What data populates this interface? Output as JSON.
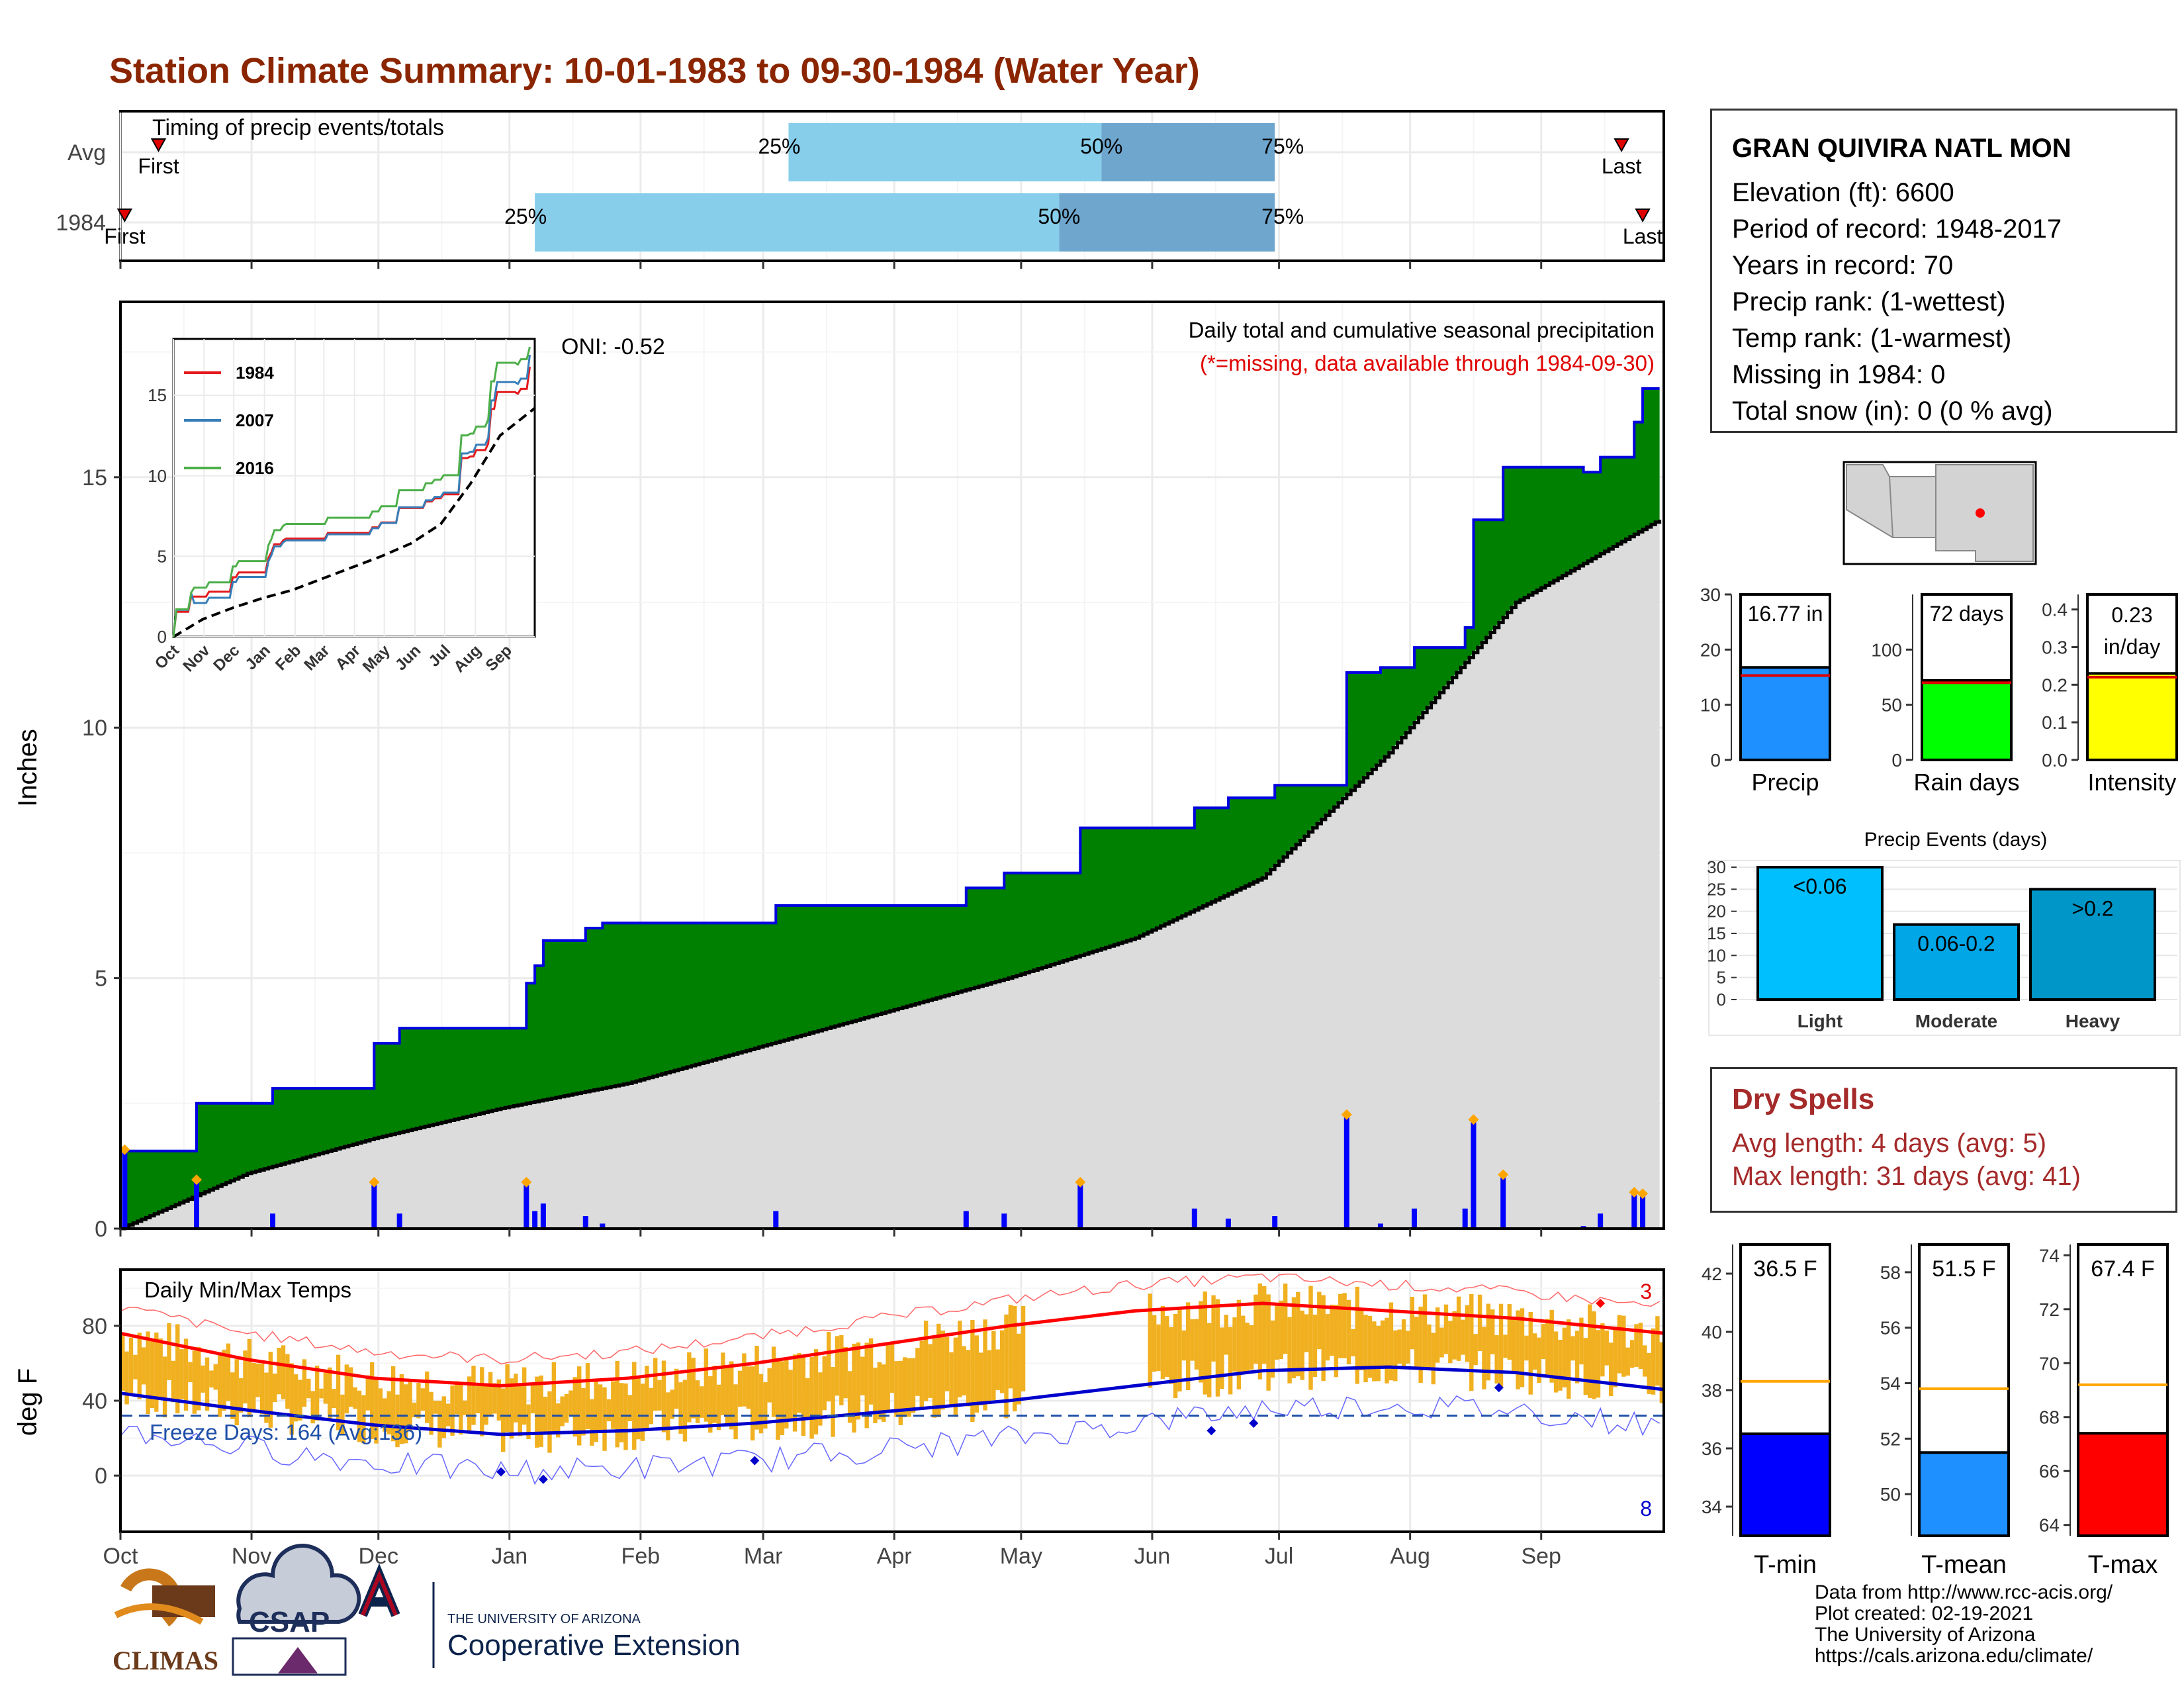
{
  "title": "Station Climate Summary: 10-01-1983 to 09-30-1984 (Water Year)",
  "months": [
    "Oct",
    "Nov",
    "Dec",
    "Jan",
    "Feb",
    "Mar",
    "Apr",
    "May",
    "Jun",
    "Jul",
    "Aug",
    "Sep"
  ],
  "timing": {
    "header": "Timing of precip events/totals",
    "rows": [
      {
        "label": "Avg",
        "first": "First",
        "last": "Last",
        "p25": "25%",
        "p50": "50%",
        "p75": "75%",
        "first_day": 9,
        "p25_day": 158,
        "p50_day": 232,
        "p75_day": 273,
        "last_day": 355
      },
      {
        "label": "1984",
        "first": "First",
        "last": "Last",
        "p25": "25%",
        "p50": "50%",
        "p75": "75%",
        "first_day": 1,
        "p25_day": 98,
        "p50_day": 222,
        "p75_day": 273,
        "last_day": 360
      }
    ]
  },
  "main": {
    "ylabel": "Inches",
    "subtitle": "Daily total and cumulative seasonal precipitation",
    "missing_note": "(*=missing, data available through 1984-09-30)",
    "oni": "ONI: -0.52",
    "yticks": [
      "0",
      "5",
      "10",
      "15"
    ]
  },
  "inset": {
    "legend": [
      "1984",
      "2007",
      "2016"
    ],
    "colors": [
      "#e41a1c",
      "#377eb8",
      "#4daf4a"
    ],
    "months": [
      "Oct",
      "Nov",
      "Dec",
      "Jan",
      "Feb",
      "Mar",
      "Apr",
      "May",
      "Jun",
      "Jul",
      "Aug",
      "Sep"
    ],
    "yticks": [
      "0",
      "5",
      "10",
      "15"
    ]
  },
  "temps": {
    "label": "Daily Min/Max Temps",
    "ylabel": "deg F",
    "yticks": [
      "0",
      "40",
      "80"
    ],
    "freeze": "Freeze Days: 164 (Avg:136)",
    "record_high_count": "3",
    "record_low_count": "8"
  },
  "station": {
    "name": "GRAN QUIVIRA NATL MON",
    "lines": [
      "Elevation (ft): 6600",
      "Period of record: 1948-2017",
      "Years in record: 70",
      "Precip rank:  (1-wettest)",
      "Temp rank:  (1-warmest)",
      "Missing in 1984: 0",
      "Total snow (in): 0 (0 % avg)"
    ]
  },
  "mini_bars": [
    {
      "label": "Precip",
      "value_text": "16.77 in",
      "value": 16.77,
      "avg": 15.3,
      "max": 30,
      "ticks": [
        "0",
        "10",
        "20",
        "30"
      ],
      "color": "#1e90ff"
    },
    {
      "label": "Rain days",
      "value_text": "72 days",
      "value": 72,
      "avg": 70,
      "max": 150,
      "ticks": [
        "0",
        "50",
        "100"
      ],
      "color": "#00ff00"
    },
    {
      "label": "Intensity",
      "value_text": "0.23 in/day",
      "value_line1": "0.23",
      "value_line2": "in/day",
      "value": 0.23,
      "avg": 0.22,
      "max": 0.44,
      "ticks": [
        "0.0",
        "0.1",
        "0.2",
        "0.3",
        "0.4"
      ],
      "color": "#ffff00"
    }
  ],
  "events": {
    "title": "Precip Events (days)",
    "ticks": [
      "0",
      "5",
      "10",
      "15",
      "20",
      "25",
      "30"
    ],
    "bars": [
      {
        "label": "Light",
        "text": "<0.06",
        "value": 30,
        "color": "#00bfff"
      },
      {
        "label": "Moderate",
        "text": "0.06-0.2",
        "value": 17,
        "color": "#00a6e6"
      },
      {
        "label": "Heavy",
        "text": ">0.2",
        "value": 25,
        "color": "#0096c7"
      }
    ]
  },
  "dry_spells": {
    "title": "Dry Spells",
    "avg": "Avg length: 4 days (avg: 5)",
    "max": "Max length: 31 days (avg: 41)"
  },
  "temp_bars": [
    {
      "label": "T-min",
      "value_text": "36.5 F",
      "value": 36.5,
      "avg": 38.3,
      "min": 33,
      "max": 43,
      "ticks": [
        "34",
        "36",
        "38",
        "40",
        "42"
      ],
      "color": "#0000ff"
    },
    {
      "label": "T-mean",
      "value_text": "51.5 F",
      "value": 51.5,
      "avg": 53.8,
      "min": 48.5,
      "max": 59,
      "ticks": [
        "50",
        "52",
        "54",
        "56",
        "58"
      ],
      "color": "#1e90ff"
    },
    {
      "label": "T-max",
      "value_text": "67.4 F",
      "value": 67.4,
      "avg": 69.2,
      "min": 63.6,
      "max": 74.4,
      "ticks": [
        "64",
        "66",
        "68",
        "70",
        "72",
        "74"
      ],
      "color": "#ff0000"
    }
  ],
  "footer": {
    "lines": [
      "Data from http://www.rcc-acis.org/",
      "Plot created: 02-19-2021",
      "The University of Arizona",
      "https://cals.arizona.edu/climate/"
    ],
    "ua_small": "THE UNIVERSITY OF ARIZONA",
    "ua_big": "Cooperative Extension",
    "climas": "CLIMAS",
    "csap": "CSAP"
  },
  "chart_data": {
    "type": "area",
    "title": "Station Climate Summary: 10-01-1983 to 09-30-1984 (Water Year)",
    "ylabel": "Inches",
    "ylim": [
      0,
      18.5
    ],
    "cumulative_1984_steps": [
      [
        0,
        0
      ],
      [
        1,
        1.55
      ],
      [
        18,
        2.5
      ],
      [
        36,
        2.8
      ],
      [
        60,
        3.7
      ],
      [
        66,
        4.0
      ],
      [
        96,
        4.9
      ],
      [
        98,
        5.25
      ],
      [
        100,
        5.75
      ],
      [
        110,
        6.0
      ],
      [
        114,
        6.1
      ],
      [
        155,
        6.45
      ],
      [
        200,
        6.8
      ],
      [
        209,
        7.1
      ],
      [
        227,
        8.0
      ],
      [
        254,
        8.4
      ],
      [
        262,
        8.6
      ],
      [
        273,
        8.85
      ],
      [
        290,
        11.1
      ],
      [
        298,
        11.2
      ],
      [
        306,
        11.6
      ],
      [
        318,
        12.0
      ],
      [
        320,
        14.15
      ],
      [
        327,
        15.2
      ],
      [
        346,
        15.1
      ],
      [
        350,
        15.4
      ],
      [
        358,
        16.1
      ],
      [
        360,
        16.77
      ]
    ],
    "cumulative_avg": [
      [
        0,
        0
      ],
      [
        30,
        1.1
      ],
      [
        60,
        1.8
      ],
      [
        90,
        2.4
      ],
      [
        120,
        2.9
      ],
      [
        150,
        3.6
      ],
      [
        180,
        4.3
      ],
      [
        210,
        5.0
      ],
      [
        240,
        5.8
      ],
      [
        270,
        7.0
      ],
      [
        300,
        9.5
      ],
      [
        330,
        12.5
      ],
      [
        365,
        14.2
      ]
    ],
    "temps_max_avg": [
      [
        0,
        76
      ],
      [
        30,
        62
      ],
      [
        60,
        52
      ],
      [
        90,
        48
      ],
      [
        120,
        52
      ],
      [
        150,
        60
      ],
      [
        180,
        70
      ],
      [
        210,
        80
      ],
      [
        240,
        88
      ],
      [
        270,
        92
      ],
      [
        300,
        88
      ],
      [
        330,
        84
      ],
      [
        365,
        76
      ]
    ],
    "temps_min_avg": [
      [
        0,
        44
      ],
      [
        30,
        35
      ],
      [
        60,
        27
      ],
      [
        90,
        22
      ],
      [
        120,
        24
      ],
      [
        150,
        28
      ],
      [
        180,
        34
      ],
      [
        210,
        40
      ],
      [
        240,
        48
      ],
      [
        270,
        56
      ],
      [
        300,
        58
      ],
      [
        330,
        55
      ],
      [
        365,
        46
      ]
    ],
    "freeze_line": 32
  }
}
